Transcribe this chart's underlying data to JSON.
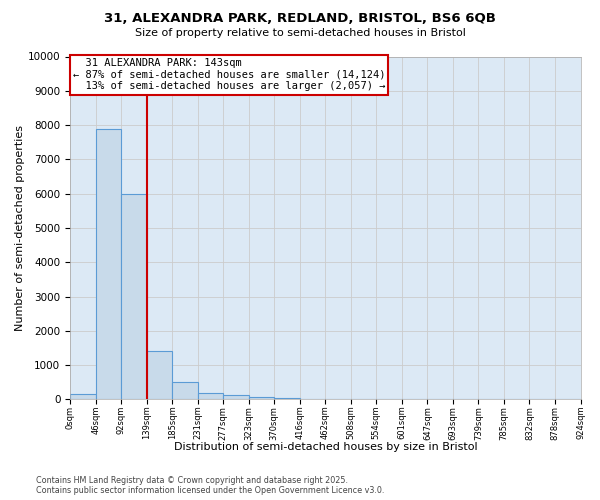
{
  "title_line1": "31, ALEXANDRA PARK, REDLAND, BRISTOL, BS6 6QB",
  "title_line2": "Size of property relative to semi-detached houses in Bristol",
  "bar_values": [
    150,
    7900,
    6000,
    1400,
    500,
    200,
    130,
    70,
    30,
    0,
    0,
    0,
    0,
    0,
    0,
    0,
    0,
    0,
    0,
    0
  ],
  "bin_labels": [
    "0sqm",
    "46sqm",
    "92sqm",
    "139sqm",
    "185sqm",
    "231sqm",
    "277sqm",
    "323sqm",
    "370sqm",
    "416sqm",
    "462sqm",
    "508sqm",
    "554sqm",
    "601sqm",
    "647sqm",
    "693sqm",
    "739sqm",
    "785sqm",
    "832sqm",
    "878sqm",
    "924sqm"
  ],
  "bar_color": "#c8daea",
  "bar_edge_color": "#5b9bd5",
  "property_label": "31 ALEXANDRA PARK: 143sqm",
  "pct_smaller": 87,
  "count_smaller": 14124,
  "pct_larger": 13,
  "count_larger": 2057,
  "red_line_bin": 3,
  "annotation_box_color": "#ffffff",
  "annotation_box_edge": "#cc0000",
  "red_line_color": "#cc0000",
  "xlabel": "Distribution of semi-detached houses by size in Bristol",
  "ylabel": "Number of semi-detached properties",
  "ylim": [
    0,
    10000
  ],
  "yticks": [
    0,
    1000,
    2000,
    3000,
    4000,
    5000,
    6000,
    7000,
    8000,
    9000,
    10000
  ],
  "footer_line1": "Contains HM Land Registry data © Crown copyright and database right 2025.",
  "footer_line2": "Contains public sector information licensed under the Open Government Licence v3.0.",
  "grid_color": "#cccccc",
  "background_color": "#dce9f5"
}
